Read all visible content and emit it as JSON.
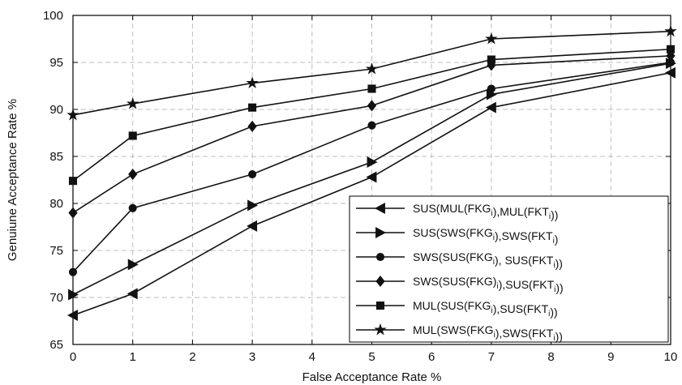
{
  "chart_data": {
    "type": "line",
    "xlabel": "False Acceptance Rate %",
    "ylabel": "Genuiune Acceptance Rate %",
    "xlim": [
      0,
      10
    ],
    "ylim": [
      65,
      100
    ],
    "x_ticks": [
      0,
      1,
      2,
      3,
      4,
      5,
      6,
      7,
      8,
      9,
      10
    ],
    "y_ticks": [
      65,
      70,
      75,
      80,
      85,
      90,
      95,
      100
    ],
    "grid": true,
    "legend_position": "bottom-right",
    "x": [
      0,
      1,
      3,
      5,
      7,
      10
    ],
    "series": [
      {
        "label_parts": [
          [
            "SUS(MUL(FKG",
            false
          ],
          [
            "i",
            true
          ],
          [
            "),MUL(FKT",
            false
          ],
          [
            "i",
            true
          ],
          [
            "))",
            false
          ]
        ],
        "marker": "triangle-left",
        "values": [
          68.1,
          70.4,
          77.6,
          82.8,
          90.2,
          93.9
        ]
      },
      {
        "label_parts": [
          [
            "SUS(SWS(FKG",
            false
          ],
          [
            "i",
            true
          ],
          [
            "),SWS(FKT",
            false
          ],
          [
            "i",
            true
          ],
          [
            ")",
            false
          ]
        ],
        "marker": "triangle-right",
        "values": [
          70.3,
          73.5,
          79.8,
          84.4,
          91.6,
          94.9
        ]
      },
      {
        "label_parts": [
          [
            "SWS(SUS(FKG",
            false
          ],
          [
            "i",
            true
          ],
          [
            "), SUS(FKT",
            false
          ],
          [
            "i",
            true
          ],
          [
            "))",
            false
          ]
        ],
        "marker": "circle",
        "values": [
          72.7,
          79.5,
          83.1,
          88.3,
          92.2,
          95.0
        ]
      },
      {
        "label_parts": [
          [
            "SWS(SUS(FKG)",
            false
          ],
          [
            "i",
            true
          ],
          [
            "),SUS(FKT",
            false
          ],
          [
            "i",
            true
          ],
          [
            "))",
            false
          ]
        ],
        "marker": "diamond",
        "values": [
          79.0,
          83.1,
          88.2,
          90.4,
          94.7,
          95.7
        ]
      },
      {
        "label_parts": [
          [
            "MUL(SUS(FKG",
            false
          ],
          [
            "i",
            true
          ],
          [
            "),SUS(FKT",
            false
          ],
          [
            "i",
            true
          ],
          [
            "))",
            false
          ]
        ],
        "marker": "square",
        "values": [
          82.4,
          87.2,
          90.2,
          92.2,
          95.3,
          96.4
        ]
      },
      {
        "label_parts": [
          [
            "MUL(SWS(FKG",
            false
          ],
          [
            "i",
            true
          ],
          [
            "),SWS(FKT",
            false
          ],
          [
            "i",
            true
          ],
          [
            "))",
            false
          ]
        ],
        "marker": "star",
        "values": [
          89.4,
          90.6,
          92.8,
          94.3,
          97.5,
          98.3
        ]
      }
    ]
  }
}
